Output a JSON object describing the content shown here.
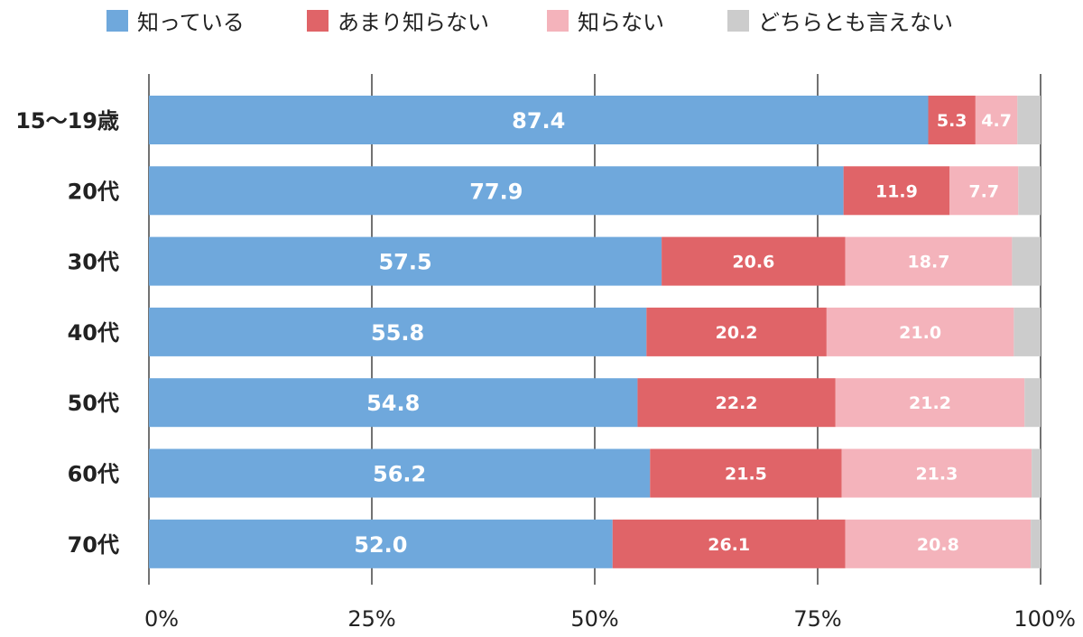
{
  "chart_data": {
    "type": "bar",
    "orientation": "horizontal",
    "stacked": true,
    "categories": [
      "15～19歳",
      "20代",
      "30代",
      "40代",
      "50代",
      "60代",
      "70代"
    ],
    "series": [
      {
        "name": "知っている",
        "color": "#6fa8dc",
        "values": [
          87.4,
          77.9,
          57.5,
          55.8,
          54.8,
          56.2,
          52.0
        ],
        "labels": [
          "87.4",
          "77.9",
          "57.5",
          "55.8",
          "54.8",
          "56.2",
          "52.0"
        ]
      },
      {
        "name": "あまり知らない",
        "color": "#e06468",
        "values": [
          5.3,
          11.9,
          20.6,
          20.2,
          22.2,
          21.5,
          26.1
        ],
        "labels": [
          "5.3",
          "11.9",
          "20.6",
          "20.2",
          "22.2",
          "21.5",
          "26.1"
        ]
      },
      {
        "name": "知らない",
        "color": "#f4b3bb",
        "values": [
          4.7,
          7.7,
          18.7,
          21.0,
          21.2,
          21.3,
          20.8
        ],
        "labels": [
          "4.7",
          "7.7",
          "18.7",
          "21.0",
          "21.2",
          "21.3",
          "20.8"
        ]
      },
      {
        "name": "どちらとも言えない",
        "color": "#cccccc",
        "values": [
          2.6,
          2.5,
          3.2,
          3.0,
          1.8,
          1.0,
          1.1
        ],
        "labels": [
          "",
          "",
          "",
          "",
          "",
          "",
          ""
        ]
      }
    ],
    "xlim": [
      0,
      100
    ],
    "xticks": [
      0,
      25,
      50,
      75,
      100
    ],
    "xtick_labels": [
      "0%",
      "25%",
      "50%",
      "75%",
      "100%"
    ],
    "grid": true,
    "legend_position": "top",
    "title": "",
    "xlabel": "",
    "ylabel": ""
  }
}
